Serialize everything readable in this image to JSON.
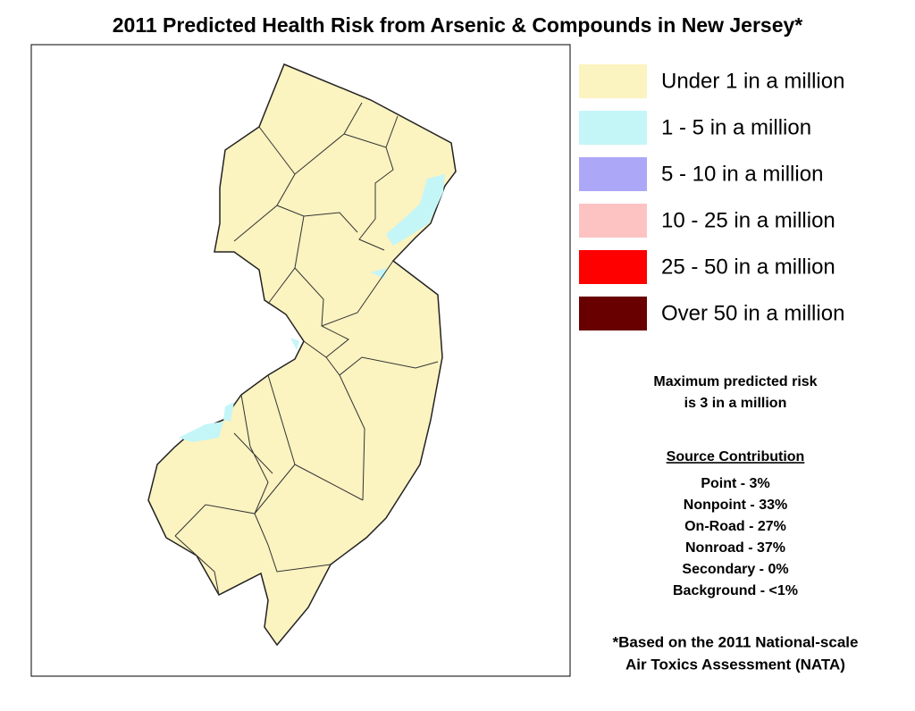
{
  "header": {
    "title": "2011 Predicted Health Risk from Arsenic & Compounds in New Jersey*"
  },
  "legend": [
    {
      "label": "Under 1 in a million",
      "color": "#fbf3c0"
    },
    {
      "label": "1 - 5 in a million",
      "color": "#c4f6f8"
    },
    {
      "label": "5 - 10 in a million",
      "color": "#ada7f7"
    },
    {
      "label": "10 - 25 in a million",
      "color": "#fdc3c3"
    },
    {
      "label": "25 - 50 in a million",
      "color": "#ff0000"
    },
    {
      "label": "Over 50 in a million",
      "color": "#680000"
    }
  ],
  "max_risk": [
    "Maximum predicted risk",
    "is 3 in a million"
  ],
  "source_contribution": {
    "title": "Source Contribution",
    "items": [
      "Point -  3%",
      "Nonpoint - 33%",
      "On-Road - 27%",
      "Nonroad - 37%",
      "Secondary - 0%",
      "Background - <1%"
    ]
  },
  "footnote": [
    "*Based on the 2011 National-scale",
    "Air Toxics Assessment (NATA)"
  ]
}
